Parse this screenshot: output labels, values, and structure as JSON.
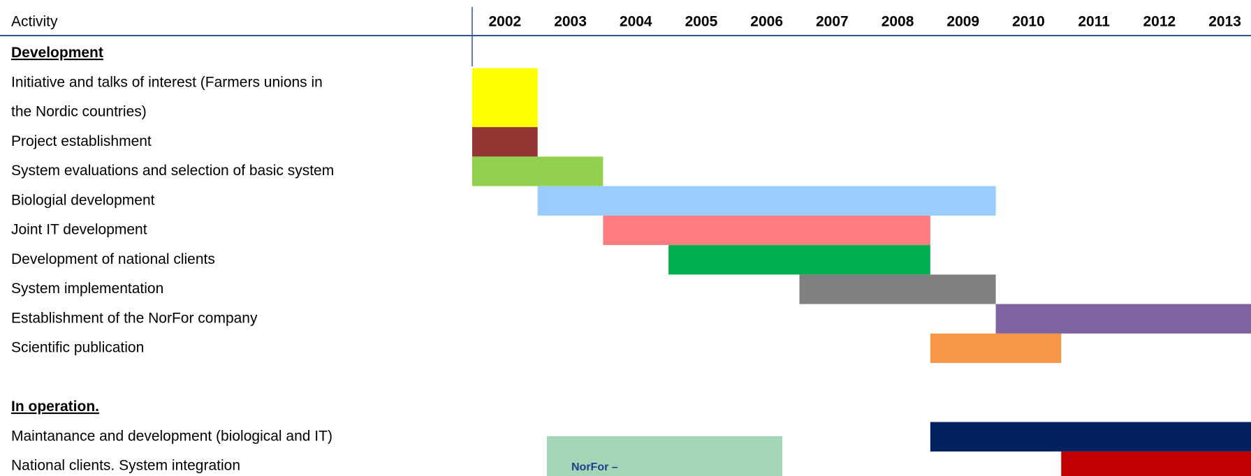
{
  "chart_data": {
    "type": "gantt",
    "header": "Activity",
    "xlim": [
      2002,
      2014
    ],
    "xticks": [
      2002,
      2003,
      2004,
      2005,
      2006,
      2007,
      2008,
      2009,
      2010,
      2011,
      2012,
      2013
    ],
    "sections": [
      {
        "title": "Development ",
        "tasks": [
          {
            "label": [
              "Initiative and talks of interest (Farmers unions in",
              "the Nordic countries)"
            ],
            "start": 2002,
            "end": 2003,
            "color": "#ffff00"
          },
          {
            "label": "Project  establishment",
            "start": 2002,
            "end": 2003,
            "color": "#943634"
          },
          {
            "label": "System evaluations and selection of basic system",
            "start": 2002,
            "end": 2004,
            "color": "#92d050"
          },
          {
            "label": "Biologial development",
            "start": 2003,
            "end": 2010,
            "color": "#99ccff"
          },
          {
            "label": "Joint IT development",
            "start": 2004,
            "end": 2009,
            "color": "#ff7c80"
          },
          {
            "label": "Development of national clients",
            "start": 2005,
            "end": 2009,
            "color": "#00b050"
          },
          {
            "label": "System implementation",
            "start": 2007,
            "end": 2010,
            "color": "#808080"
          },
          {
            "label": "Establishment of the NorFor company",
            "start": 2010,
            "end": 2014,
            "color": "#8064a2"
          },
          {
            "label": "Scientific publication",
            "start": 2009,
            "end": 2011,
            "color": "#f79646"
          }
        ]
      },
      {
        "title": "In operation. ",
        "tasks": [
          {
            "label": "Maintanance and development (biological and IT)",
            "start": 2009,
            "end": 2014,
            "color": "#002060"
          },
          {
            "label": "National clients. System integration",
            "start": 2011,
            "end": 2014,
            "color": "#c00000"
          }
        ]
      }
    ],
    "annotations": [
      "NorFor –"
    ]
  }
}
